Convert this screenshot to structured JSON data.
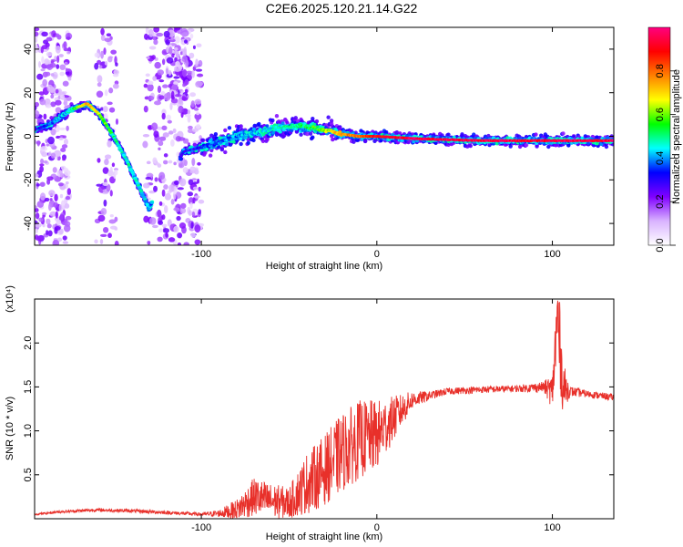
{
  "title": "C2E6.2025.120.21.14.G22",
  "chart_data": [
    {
      "type": "heatmap",
      "xlabel": "Height of straight line (km)",
      "ylabel": "Frequency (Hz)",
      "xlim": [
        -195,
        135
      ],
      "ylim": [
        -50,
        50
      ],
      "x_ticks": [
        -100,
        0,
        100
      ],
      "y_ticks": [
        -40,
        -20,
        0,
        20,
        40
      ],
      "colorbar": {
        "label": "Normalized spectral amplitude",
        "range": [
          0,
          1
        ],
        "ticks": [
          "0.0",
          "0.2",
          "0.4",
          "0.6",
          "0.8"
        ],
        "colors": [
          "#ffffff",
          "#d9b3ff",
          "#8000ff",
          "#0000ff",
          "#00ffff",
          "#00ff00",
          "#ffff00",
          "#ff8000",
          "#ff0000",
          "#ff0080"
        ]
      },
      "ridge": [
        {
          "x": -195,
          "y": 3,
          "amp": 0.3
        },
        {
          "x": -185,
          "y": 6,
          "amp": 0.35
        },
        {
          "x": -175,
          "y": 12,
          "amp": 0.45
        },
        {
          "x": -165,
          "y": 15,
          "amp": 0.75
        },
        {
          "x": -158,
          "y": 10,
          "amp": 0.65
        },
        {
          "x": -150,
          "y": 0,
          "amp": 0.5
        },
        {
          "x": -142,
          "y": -12,
          "amp": 0.45
        },
        {
          "x": -135,
          "y": -24,
          "amp": 0.45
        },
        {
          "x": -130,
          "y": -33,
          "amp": 0.4
        },
        {
          "x": -110,
          "y": -7,
          "amp": 0.3
        },
        {
          "x": -95,
          "y": -4,
          "amp": 0.35
        },
        {
          "x": -80,
          "y": 0,
          "amp": 0.4
        },
        {
          "x": -60,
          "y": 3,
          "amp": 0.45
        },
        {
          "x": -45,
          "y": 5,
          "amp": 0.5
        },
        {
          "x": -30,
          "y": 3,
          "amp": 0.6
        },
        {
          "x": -20,
          "y": 1,
          "amp": 0.75
        },
        {
          "x": -10,
          "y": 0,
          "amp": 0.8
        },
        {
          "x": 0,
          "y": 0,
          "amp": 0.9
        },
        {
          "x": 20,
          "y": -1,
          "amp": 0.95
        },
        {
          "x": 60,
          "y": -2,
          "amp": 0.95
        },
        {
          "x": 100,
          "y": -2,
          "amp": 0.95
        },
        {
          "x": 135,
          "y": -2,
          "amp": 0.95
        }
      ]
    },
    {
      "type": "line",
      "xlabel": "Height of straight line (km)",
      "ylabel": "SNR (10 * v/v)",
      "y_exponent_label": "(x10⁴)",
      "xlim": [
        -195,
        135
      ],
      "ylim": [
        0,
        2.5
      ],
      "x_ticks": [
        -100,
        0,
        100
      ],
      "y_ticks": [
        0.5,
        1.0,
        1.5,
        2.0
      ],
      "y_tick_labels": [
        "0.5",
        "1.0",
        "1.5",
        "2.0"
      ],
      "color": "#e8302a",
      "series": [
        {
          "x": [
            -195,
            -180,
            -160,
            -140,
            -120,
            -100,
            -90,
            -80,
            -70,
            -60,
            -50,
            -40,
            -30,
            -20,
            -10,
            0,
            10,
            20,
            30,
            40,
            60,
            80,
            95,
            100,
            103,
            106,
            110,
            120,
            135
          ],
          "values": [
            0.05,
            0.08,
            0.1,
            0.09,
            0.07,
            0.05,
            0.06,
            0.1,
            0.25,
            0.2,
            0.18,
            0.4,
            0.55,
            0.75,
            0.9,
            0.95,
            1.15,
            1.35,
            1.4,
            1.45,
            1.47,
            1.48,
            1.5,
            1.45,
            2.3,
            1.5,
            1.45,
            1.42,
            1.38
          ],
          "envelope": [
            0.01,
            0.015,
            0.02,
            0.02,
            0.02,
            0.02,
            0.04,
            0.12,
            0.22,
            0.2,
            0.18,
            0.35,
            0.4,
            0.45,
            0.45,
            0.4,
            0.25,
            0.1,
            0.05,
            0.04,
            0.04,
            0.04,
            0.06,
            0.2,
            0.6,
            0.3,
            0.06,
            0.04,
            0.04
          ]
        }
      ]
    }
  ]
}
